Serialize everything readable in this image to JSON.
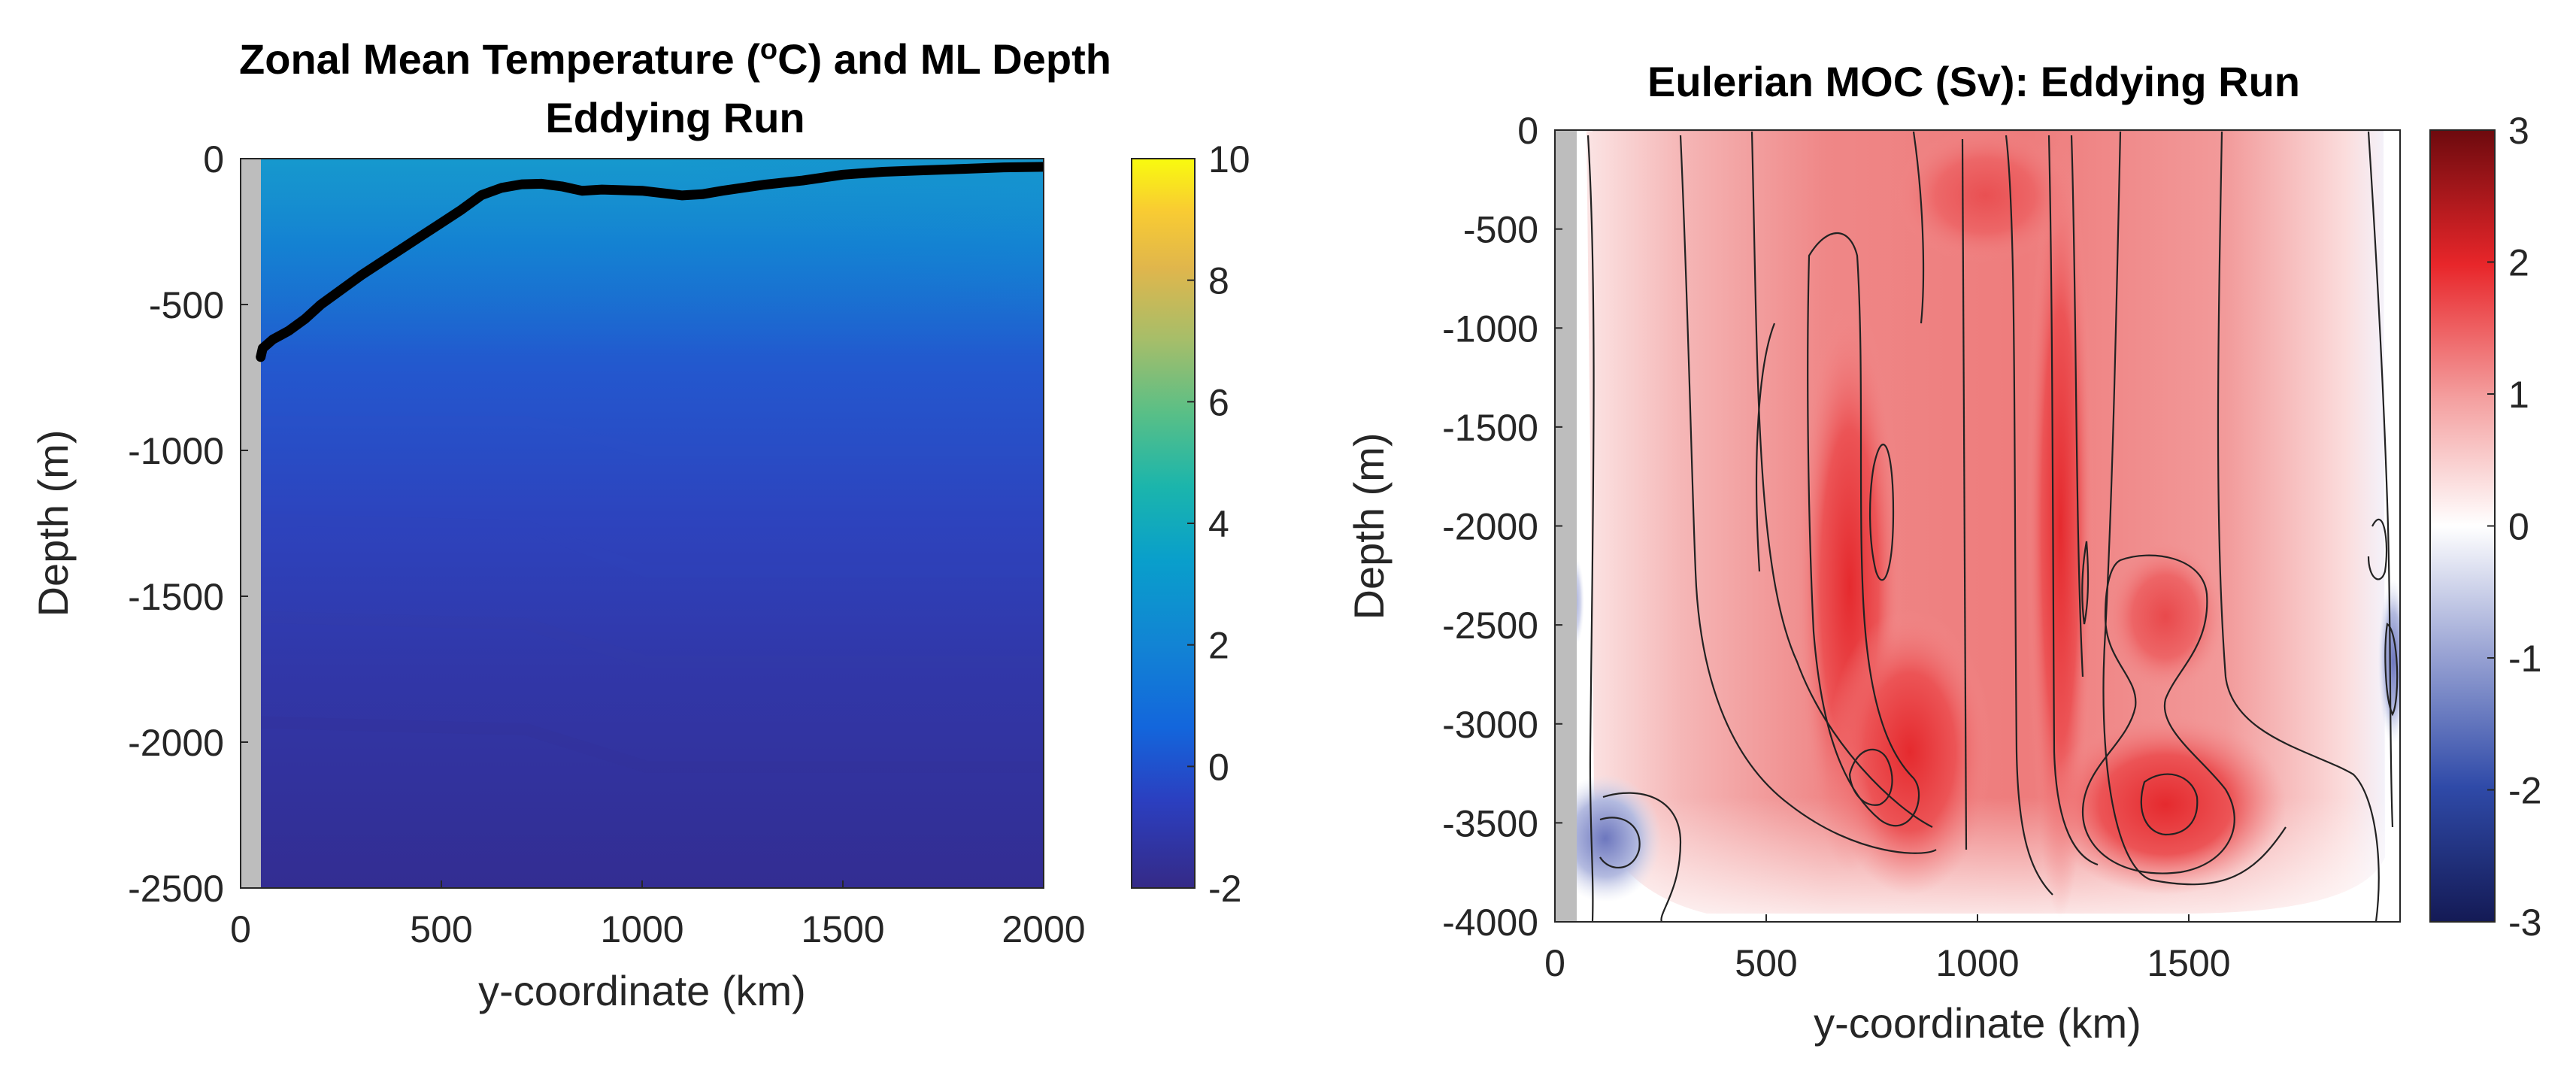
{
  "chart_data": [
    {
      "type": "heatmap",
      "title": [
        "Zonal Mean Temperature (",
        "o",
        "C) and ML Depth",
        "Eddying Run"
      ],
      "xlabel": "y-coordinate (km)",
      "ylabel": "Depth (m)",
      "xlim": [
        0,
        2000
      ],
      "ylim": [
        -2500,
        0
      ],
      "xticks": [
        "0",
        "500",
        "1000",
        "1500",
        "2000"
      ],
      "yticks": [
        "0",
        "-500",
        "-1000",
        "-1500",
        "-2000",
        "-2500"
      ],
      "colorbar": {
        "colormap": "parula",
        "range": [
          -2,
          10
        ],
        "ticks": [
          "10",
          "8",
          "6",
          "4",
          "2",
          "0",
          "-2"
        ]
      },
      "land_mask": {
        "x_range_km": [
          0,
          50
        ],
        "color": "#bdbdbd"
      },
      "series": [
        {
          "name": "ML Depth",
          "color": "#000000",
          "x": [
            50,
            55,
            80,
            120,
            160,
            200,
            250,
            300,
            350,
            400,
            450,
            500,
            550,
            600,
            650,
            700,
            750,
            800,
            850,
            900,
            1000,
            1100,
            1150,
            1200,
            1300,
            1400,
            1500,
            1600,
            1700,
            1800,
            1900,
            2000
          ],
          "y": [
            -680,
            -650,
            -620,
            -590,
            -550,
            -500,
            -450,
            -400,
            -355,
            -310,
            -265,
            -220,
            -175,
            -125,
            -100,
            -88,
            -86,
            -95,
            -110,
            -106,
            -110,
            -126,
            -122,
            -110,
            -90,
            -75,
            -55,
            -45,
            -40,
            -35,
            -30,
            -28
          ]
        }
      ]
    },
    {
      "type": "heatmap",
      "title": "Eulerian MOC (Sv): Eddying Run",
      "xlabel": "y-coordinate (km)",
      "ylabel": "Depth (m)",
      "xlim": [
        0,
        2000
      ],
      "ylim": [
        -4000,
        0
      ],
      "xticks": [
        "0",
        "500",
        "1000",
        "1500"
      ],
      "yticks": [
        "0",
        "-500",
        "-1000",
        "-1500",
        "-2000",
        "-2500",
        "-3000",
        "-3500",
        "-4000"
      ],
      "colorbar": {
        "colormap": "blue-white-red",
        "range": [
          -3,
          3
        ],
        "ticks": [
          "3",
          "2",
          "1",
          "0",
          "-1",
          "-2",
          "-3"
        ]
      },
      "land_mask": {
        "x_range_km": [
          0,
          50
        ],
        "color": "#bdbdbd"
      }
    }
  ]
}
